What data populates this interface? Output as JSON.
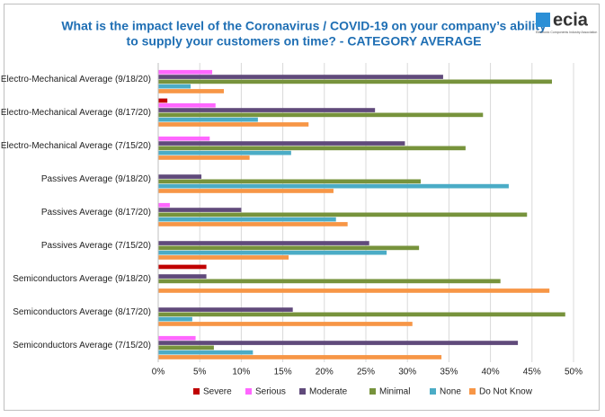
{
  "chart_data": {
    "type": "barh",
    "title": [
      "What is the impact level of the Coronavirus / COVID-19 on your company’s ability",
      "to supply your customers on time? - CATEGORY AVERAGE"
    ],
    "logo": {
      "text": "ecia",
      "subtitle": "Electronic Components Industry Association"
    },
    "categories": [
      "Electro-Mechanical Average (9/18/20)",
      "Electro-Mechanical Average (8/17/20)",
      "Electro-Mechanical Average (7/15/20)",
      "Passives Average (9/18/20)",
      "Passives Average (8/17/20)",
      "Passives Average (7/15/20)",
      "Semiconductors Average (9/18/20)",
      "Semiconductors Average (8/17/20)",
      "Semiconductors Average (7/15/20)"
    ],
    "series": [
      {
        "name": "Severe",
        "color": "#c00000",
        "values": [
          0,
          1.1,
          0,
          0,
          0,
          0,
          5.8,
          0,
          0
        ]
      },
      {
        "name": "Serious",
        "color": "#ff66ff",
        "values": [
          6.5,
          6.9,
          6.2,
          0,
          1.4,
          0,
          0,
          0,
          4.5
        ]
      },
      {
        "name": "Moderate",
        "color": "#604a7b",
        "values": [
          34.3,
          26.1,
          29.7,
          5.2,
          10.0,
          25.4,
          5.8,
          16.2,
          43.3
        ]
      },
      {
        "name": "Minimal",
        "color": "#77933c",
        "values": [
          47.4,
          39.1,
          37.0,
          31.6,
          44.4,
          31.4,
          41.2,
          49.0,
          6.7
        ]
      },
      {
        "name": "None",
        "color": "#4bacc6",
        "values": [
          3.9,
          12.0,
          16.0,
          42.2,
          21.4,
          27.5,
          0,
          4.1,
          11.4
        ]
      },
      {
        "name": "Do Not Know",
        "color": "#f79646",
        "values": [
          7.9,
          18.1,
          11.0,
          21.1,
          22.8,
          15.7,
          47.1,
          30.6,
          34.1
        ]
      }
    ],
    "xlim": [
      0,
      50
    ],
    "xticks": [
      {
        "value": 0,
        "label": "0%"
      },
      {
        "value": 5,
        "label": "5%"
      },
      {
        "value": 10,
        "label": "10%"
      },
      {
        "value": 15,
        "label": "15%"
      },
      {
        "value": 20,
        "label": "20%"
      },
      {
        "value": 25,
        "label": "25%"
      },
      {
        "value": 30,
        "label": "30%"
      },
      {
        "value": 35,
        "label": "35%"
      },
      {
        "value": 40,
        "label": "40%"
      },
      {
        "value": 45,
        "label": "45%"
      },
      {
        "value": 50,
        "label": "50%"
      }
    ],
    "grid": true,
    "legend": "bottom"
  }
}
